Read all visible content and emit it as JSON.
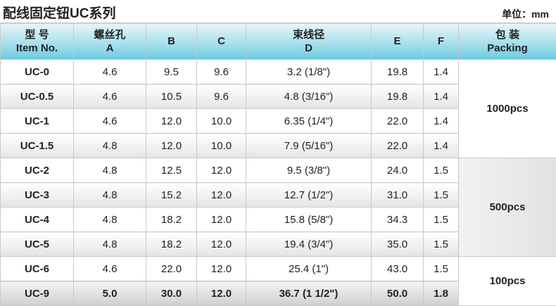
{
  "header": {
    "title": "配线固定钮UC系列",
    "unit": "单位：mm"
  },
  "table": {
    "columns": [
      [
        "型 号",
        "Item No."
      ],
      [
        "螺丝孔",
        "A"
      ],
      [
        "B"
      ],
      [
        "C"
      ],
      [
        "束线径",
        "D"
      ],
      [
        "E"
      ],
      [
        "F"
      ],
      [
        "包 装",
        "Packing"
      ]
    ],
    "groups": [
      {
        "packing": "1000pcs",
        "rows": [
          [
            "UC-0",
            "4.6",
            "9.5",
            "9.6",
            "3.2 (1/8\")",
            "19.8",
            "1.4"
          ],
          [
            "UC-0.5",
            "4.6",
            "10.5",
            "9.6",
            "4.8 (3/16\")",
            "19.8",
            "1.4"
          ],
          [
            "UC-1",
            "4.6",
            "12.0",
            "10.0",
            "6.35 (1/4\")",
            "22.0",
            "1.4"
          ],
          [
            "UC-1.5",
            "4.8",
            "12.0",
            "10.0",
            "7.9 (5/16\")",
            "22.0",
            "1.4"
          ]
        ]
      },
      {
        "packing": "500pcs",
        "rows": [
          [
            "UC-2",
            "4.8",
            "12.5",
            "12.0",
            "9.5 (3/8\")",
            "24.0",
            "1.5"
          ],
          [
            "UC-3",
            "4.8",
            "15.2",
            "12.0",
            "12.7 (1/2\")",
            "31.0",
            "1.5"
          ],
          [
            "UC-4",
            "4.8",
            "18.2",
            "12.0",
            "15.8 (5/8\")",
            "34.3",
            "1.5"
          ],
          [
            "UC-5",
            "4.8",
            "18.2",
            "12.0",
            "19.4 (3/4\")",
            "35.0",
            "1.5"
          ]
        ]
      },
      {
        "packing": "100pcs",
        "rows": [
          [
            "UC-6",
            "4.6",
            "22.0",
            "12.0",
            "25.4 (1\")",
            "43.0",
            "1.5"
          ],
          [
            "UC-9",
            "5.0",
            "30.0",
            "12.0",
            "36.7 (1 1/2\")",
            "50.0",
            "1.8"
          ]
        ]
      }
    ]
  }
}
